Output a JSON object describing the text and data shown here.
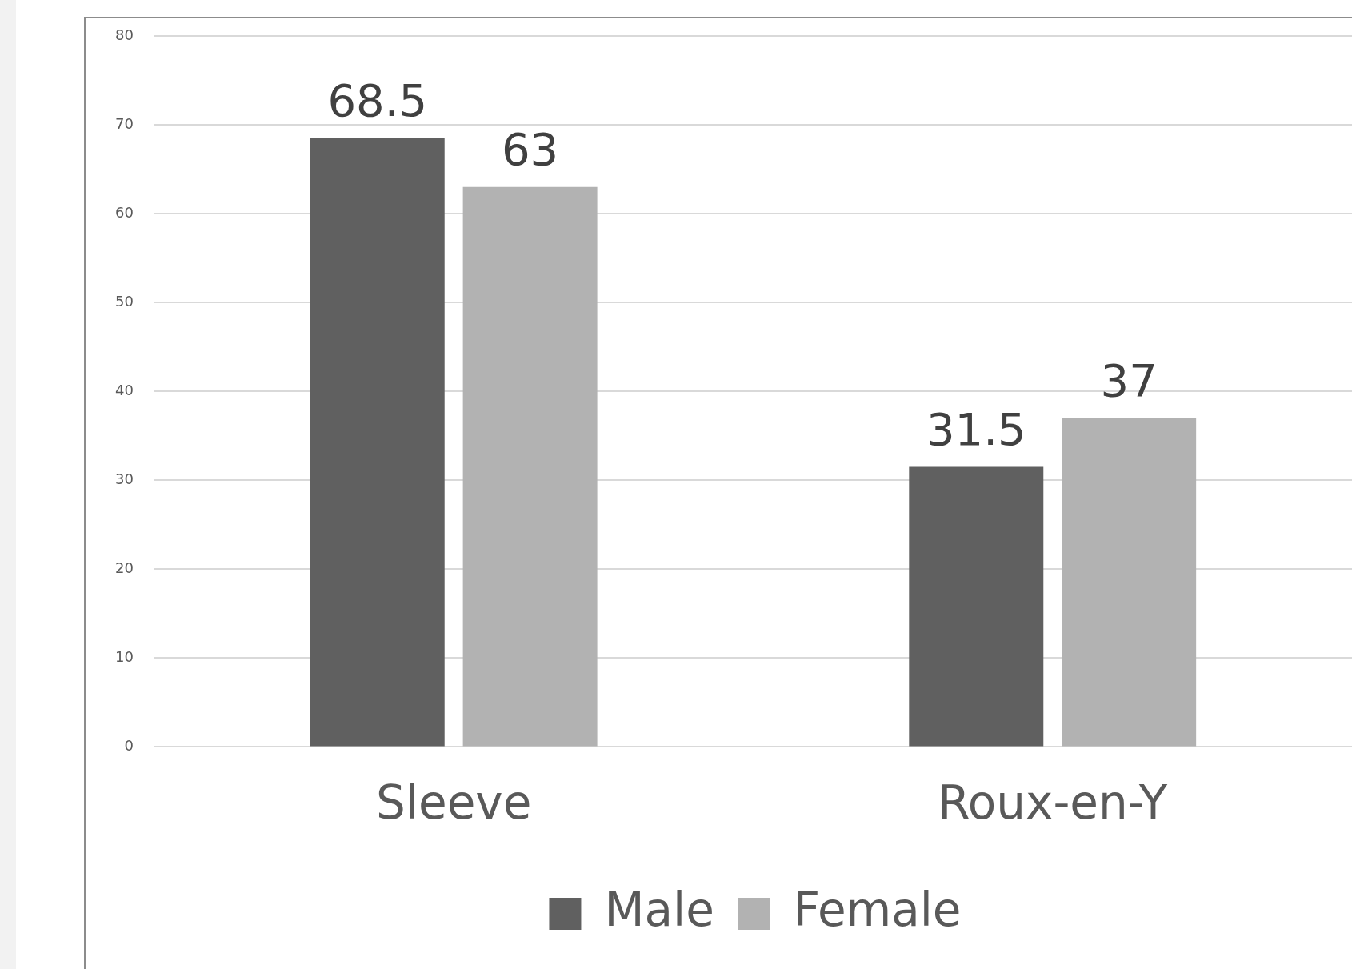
{
  "chart_data": {
    "type": "bar",
    "categories": [
      "Sleeve",
      "Roux-en-Y"
    ],
    "series": [
      {
        "name": "Male",
        "color": "#606060",
        "values": [
          68.5,
          31.5
        ]
      },
      {
        "name": "Female",
        "color": "#b2b2b2",
        "values": [
          63,
          37
        ]
      }
    ],
    "ylim": [
      0,
      80
    ],
    "yticks": [
      0,
      10,
      20,
      30,
      40,
      50,
      60,
      70,
      80
    ],
    "grid": "y",
    "legend": "bottom",
    "data_labels": true
  }
}
